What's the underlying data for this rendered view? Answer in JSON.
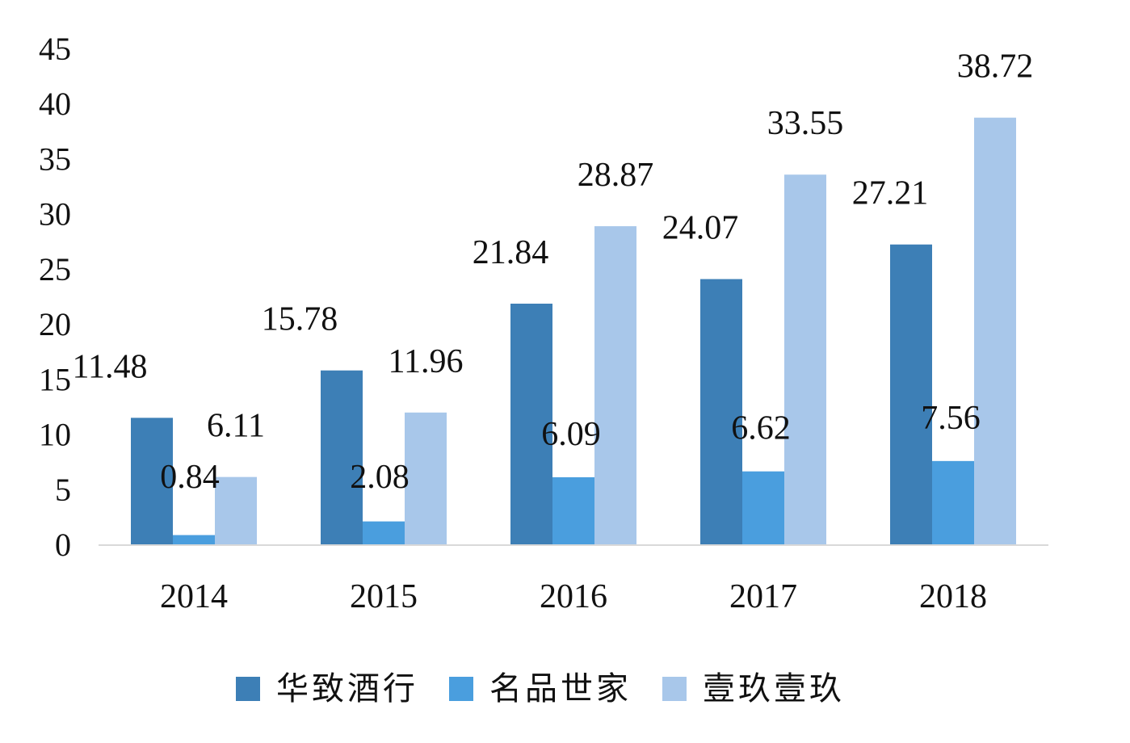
{
  "chart_data": {
    "type": "bar",
    "categories": [
      "2014",
      "2015",
      "2016",
      "2017",
      "2018"
    ],
    "series": [
      {
        "name": "华致酒行",
        "color": "#3d7fb6",
        "values": [
          11.48,
          15.78,
          21.84,
          24.07,
          27.21
        ],
        "labels": [
          "11.48",
          "15.78",
          "21.84",
          "24.07",
          "27.21"
        ]
      },
      {
        "name": "名品世家",
        "color": "#4a9ede",
        "values": [
          0.84,
          2.08,
          6.09,
          6.62,
          7.56
        ],
        "labels": [
          "0.84",
          "2.08",
          "6.09",
          "6.62",
          "7.56"
        ]
      },
      {
        "name": "壹玖壹玖",
        "color": "#a8c7ea",
        "values": [
          6.11,
          11.96,
          28.87,
          33.55,
          38.72
        ],
        "labels": [
          "6.11",
          "11.96",
          "28.87",
          "33.55",
          "38.72"
        ]
      }
    ],
    "ylim": [
      0,
      45
    ],
    "yticks": [
      "0",
      "5",
      "10",
      "15",
      "20",
      "25",
      "30",
      "35",
      "40",
      "45"
    ],
    "legend_position": "bottom",
    "grid": false,
    "axis_color": "#d9d9d9"
  }
}
